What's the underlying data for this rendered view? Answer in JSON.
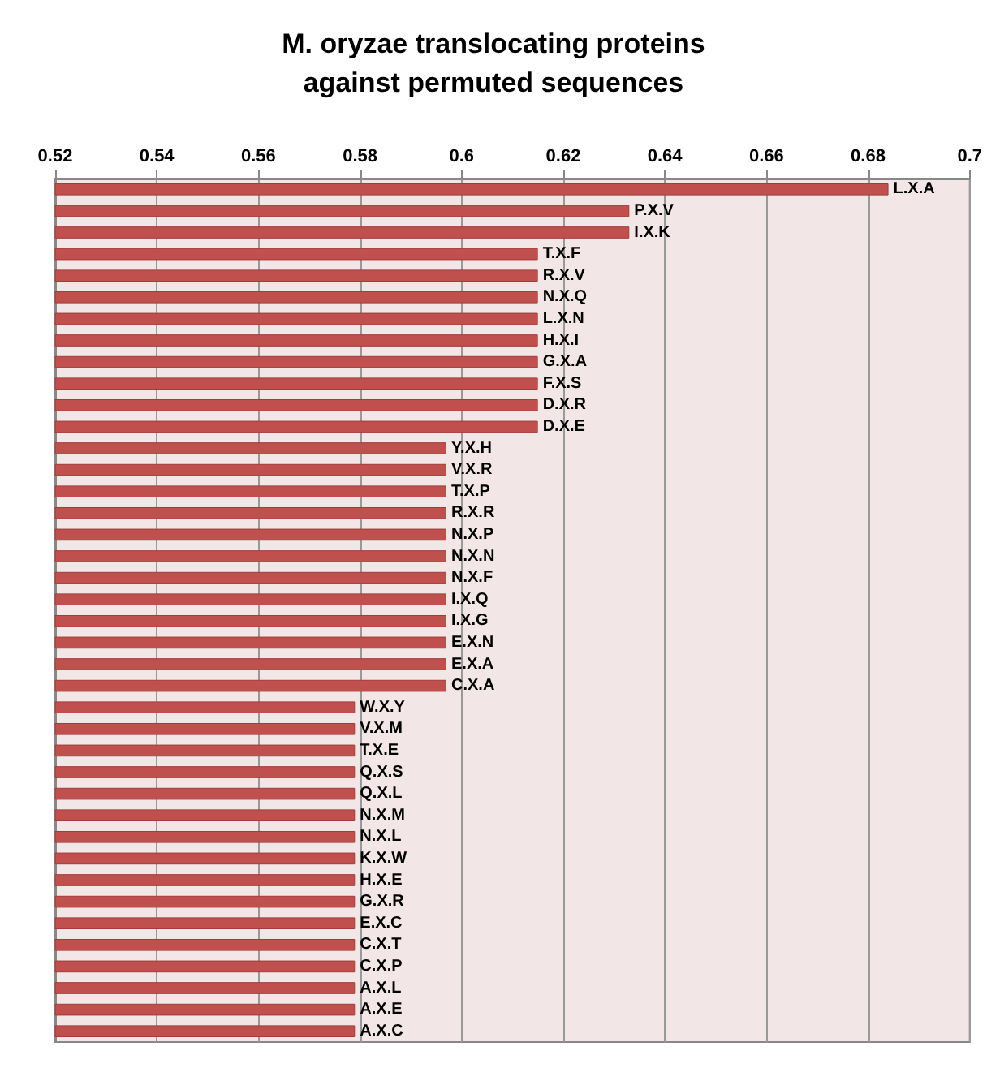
{
  "chart_data": {
    "type": "bar",
    "orientation": "horizontal",
    "title": "M. oryzae translocating proteins\nagainst permuted sequences",
    "categories": [
      "L.X.A",
      "P.X.V",
      "I.X.K",
      "T.X.F",
      "R.X.V",
      "N.X.Q",
      "L.X.N",
      "H.X.I",
      "G.X.A",
      "F.X.S",
      "D.X.R",
      "D.X.E",
      "Y.X.H",
      "V.X.R",
      "T.X.P",
      "R.X.R",
      "N.X.P",
      "N.X.N",
      "N.X.F",
      "I.X.Q",
      "I.X.G",
      "E.X.N",
      "E.X.A",
      "C.X.A",
      "W.X.Y",
      "V.X.M",
      "T.X.E",
      "Q.X.S",
      "Q.X.L",
      "N.X.M",
      "N.X.L",
      "K.X.W",
      "H.X.E",
      "G.X.R",
      "E.X.C",
      "C.X.T",
      "C.X.P",
      "A.X.L",
      "A.X.E",
      "A.X.C"
    ],
    "values": [
      0.684,
      0.633,
      0.633,
      0.615,
      0.615,
      0.615,
      0.615,
      0.615,
      0.615,
      0.615,
      0.615,
      0.615,
      0.597,
      0.597,
      0.597,
      0.597,
      0.597,
      0.597,
      0.597,
      0.597,
      0.597,
      0.597,
      0.597,
      0.597,
      0.579,
      0.579,
      0.579,
      0.579,
      0.579,
      0.579,
      0.579,
      0.579,
      0.579,
      0.579,
      0.579,
      0.579,
      0.579,
      0.579,
      0.579,
      0.579
    ],
    "color": "#c0504d",
    "xlim": [
      0.52,
      0.7
    ],
    "xticks": [
      0.52,
      0.54,
      0.56,
      0.58,
      0.6,
      0.62,
      0.64,
      0.66,
      0.68,
      0.7
    ],
    "grid": "x",
    "tick_labels": "x"
  }
}
